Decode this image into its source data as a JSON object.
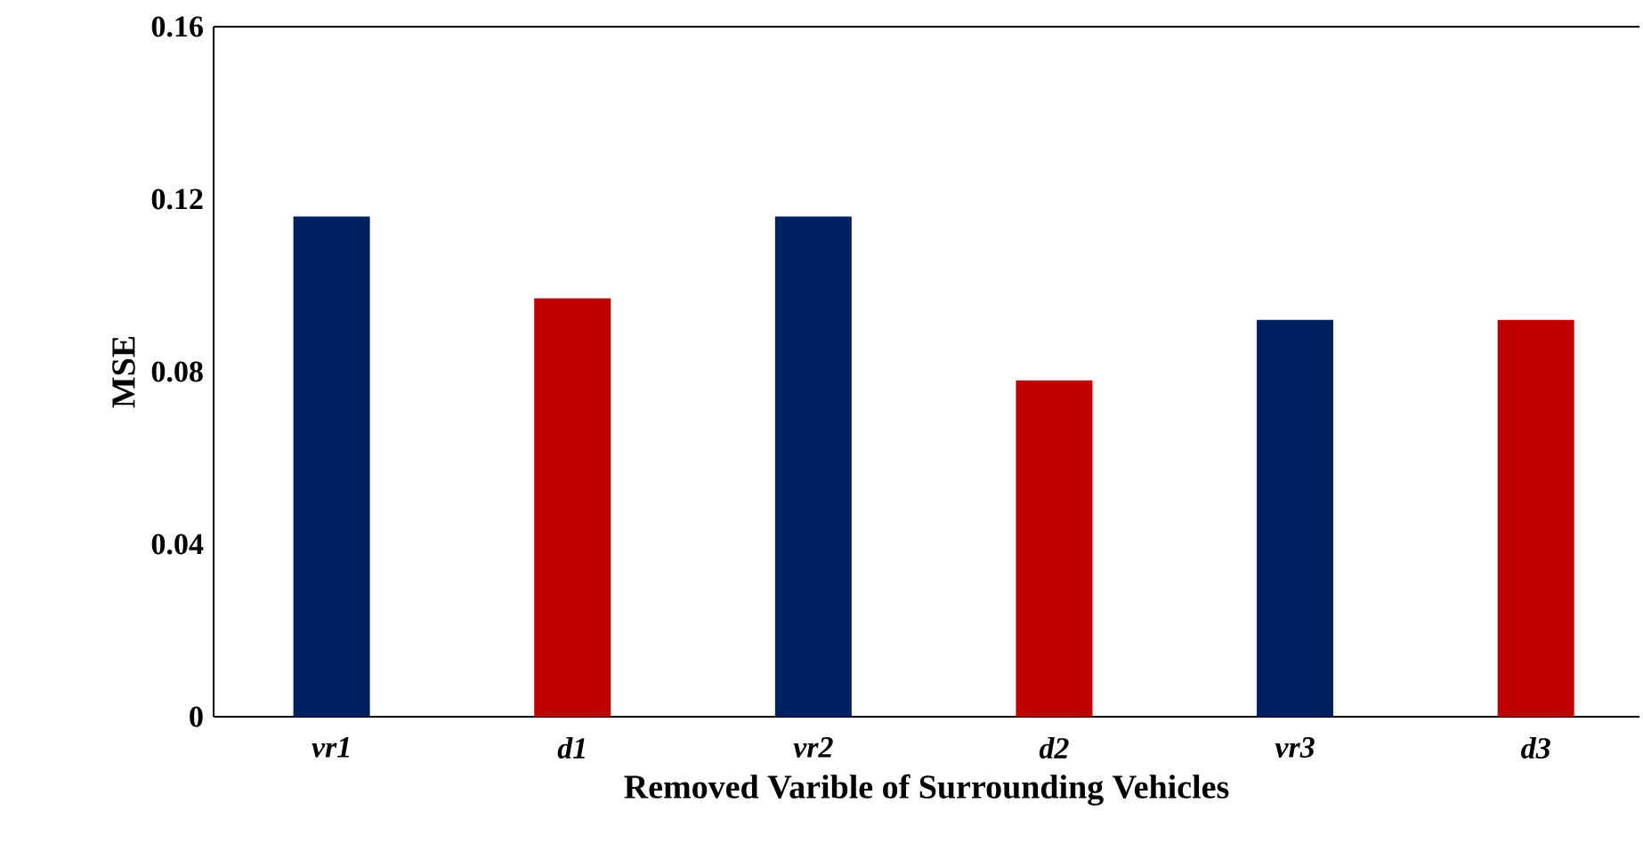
{
  "chart_data": {
    "type": "bar",
    "xlabel": "Removed Varible of Surrounding Vehicles",
    "ylabel": "MSE",
    "categories": [
      "vr1",
      "d1",
      "vr2",
      "d2",
      "vr3",
      "d3"
    ],
    "values": [
      0.116,
      0.097,
      0.116,
      0.078,
      0.092,
      0.092
    ],
    "colors": [
      "#002060",
      "#c00000",
      "#002060",
      "#c00000",
      "#002060",
      "#c00000"
    ],
    "ylim": [
      0,
      0.16
    ],
    "yticks": [
      0,
      0.04,
      0.08,
      0.12,
      0.16
    ],
    "grid": false
  }
}
